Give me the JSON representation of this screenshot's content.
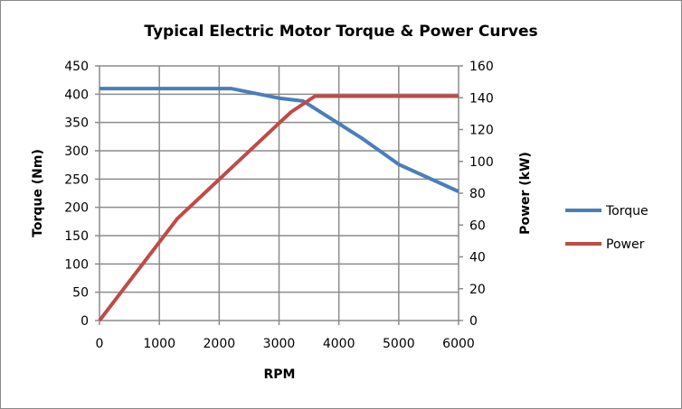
{
  "chart_data": {
    "type": "line",
    "title": "Typical Electric Motor Torque & Power Curves",
    "xlabel": "RPM",
    "ylabel": "Torque (Nm)",
    "y2label": "Power (kW)",
    "xlim": [
      0,
      6000
    ],
    "ylim": [
      0,
      450
    ],
    "y2lim": [
      0,
      160
    ],
    "xticks": [
      0,
      1000,
      2000,
      3000,
      4000,
      5000,
      6000
    ],
    "yticks": [
      0,
      50,
      100,
      150,
      200,
      250,
      300,
      350,
      400,
      450
    ],
    "y2ticks": [
      0,
      20,
      40,
      60,
      80,
      100,
      120,
      140,
      160
    ],
    "grid": true,
    "legend_position": "right",
    "series": [
      {
        "name": "Torque",
        "axis": "left",
        "color": "#4a7ebb",
        "x": [
          0,
          2200,
          3000,
          3400,
          4000,
          4400,
          5000,
          6000
        ],
        "y": [
          410,
          410,
          393,
          388,
          348,
          321,
          276,
          228
        ]
      },
      {
        "name": "Power",
        "axis": "right",
        "color": "#be4b48",
        "x": [
          0,
          1300,
          3000,
          3200,
          3600,
          6000
        ],
        "y": [
          0,
          64,
          124,
          131,
          141,
          141
        ]
      }
    ]
  }
}
